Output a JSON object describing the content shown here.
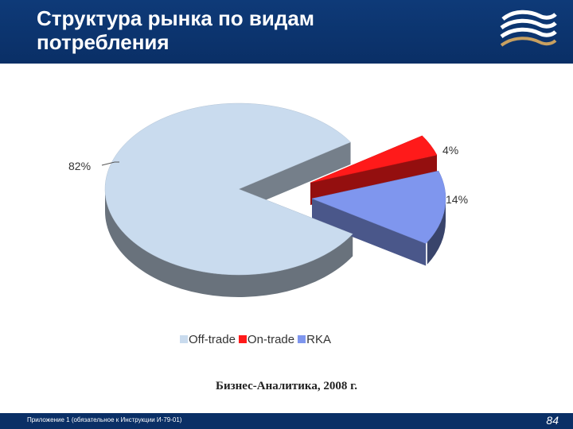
{
  "header": {
    "title": "Структура  рынка по видам потребления",
    "background": "#0a2f66"
  },
  "chart_data": {
    "type": "pie",
    "title": "",
    "exploded": true,
    "three_d": true,
    "slices": [
      {
        "label": "Off-trade",
        "value": 82,
        "value_label": "82%",
        "color": "#c9dbee"
      },
      {
        "label": "On-trade",
        "value": 4,
        "value_label": "4%",
        "color": "#ff1a1a"
      },
      {
        "label": "RKA",
        "value": 14,
        "value_label": "14%",
        "color": "#7f96ee"
      }
    ],
    "legend": {
      "placement": "bottom",
      "entries": [
        "Off-trade",
        "On-trade",
        "RKA"
      ]
    }
  },
  "source": "Бизнес-Аналитика, 2008 г.",
  "footer": {
    "text": "Приложение 1 (обязательное к Инструкции И-79-01)",
    "page_number": "84"
  }
}
